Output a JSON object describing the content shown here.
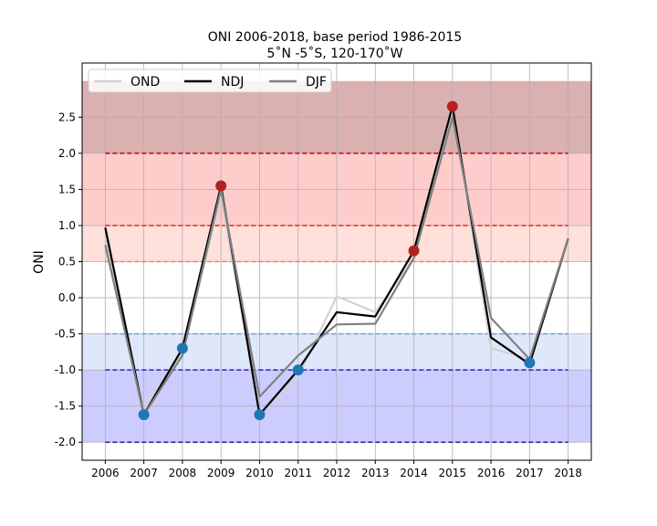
{
  "chart_data": {
    "type": "line",
    "title": "ONI 2006-2018, base period 1986-2015",
    "subtitle": "5˚N -5˚S, 120-170˚W",
    "xlabel": "",
    "ylabel": "ONI",
    "xlim": [
      2005.4,
      2018.6
    ],
    "ylim": [
      -2.25,
      3.25
    ],
    "grid": true,
    "legend_position": "top-left",
    "x": [
      2006,
      2007,
      2008,
      2009,
      2010,
      2011,
      2012,
      2013,
      2014,
      2015,
      2016,
      2017,
      2018
    ],
    "x_ticks": [
      "2006",
      "2007",
      "2008",
      "2009",
      "2010",
      "2011",
      "2012",
      "2013",
      "2014",
      "2015",
      "2016",
      "2017",
      "2018"
    ],
    "y_ticks": [
      "-2.0",
      "-1.5",
      "-1.0",
      "-0.5",
      "0.0",
      "0.5",
      "1.0",
      "1.5",
      "2.0",
      "2.5"
    ],
    "y_tick_values": [
      -2.0,
      -1.5,
      -1.0,
      -0.5,
      0.0,
      0.5,
      1.0,
      1.5,
      2.0,
      2.5
    ],
    "series": [
      {
        "name": "OND",
        "color": "#d3d3d3",
        "values": [
          0.85,
          -1.55,
          -0.75,
          1.4,
          -1.6,
          -1.1,
          0.02,
          -0.2,
          0.55,
          2.6,
          -0.7,
          -0.85,
          0.82
        ]
      },
      {
        "name": "NDJ",
        "color": "#000000",
        "values": [
          0.97,
          -1.62,
          -0.7,
          1.55,
          -1.62,
          -1.0,
          -0.2,
          -0.26,
          0.65,
          2.65,
          -0.55,
          -0.92,
          0.82
        ]
      },
      {
        "name": "DJF",
        "color": "#808080",
        "values": [
          0.73,
          -1.62,
          -0.8,
          1.5,
          -1.37,
          -0.8,
          -0.37,
          -0.36,
          0.55,
          2.5,
          -0.28,
          -0.85,
          0.82
        ]
      }
    ],
    "markers": [
      {
        "x": 2007,
        "y": -1.62,
        "color": "#1f77b4"
      },
      {
        "x": 2008,
        "y": -0.7,
        "color": "#1f77b4"
      },
      {
        "x": 2009,
        "y": 1.55,
        "color": "#b22222"
      },
      {
        "x": 2010,
        "y": -1.62,
        "color": "#1f77b4"
      },
      {
        "x": 2011,
        "y": -1.0,
        "color": "#1f77b4"
      },
      {
        "x": 2014,
        "y": 0.65,
        "color": "#b22222"
      },
      {
        "x": 2015,
        "y": 2.65,
        "color": "#b22222"
      },
      {
        "x": 2017,
        "y": -0.9,
        "color": "#1f77b4"
      }
    ],
    "bands": [
      {
        "y0": 2.0,
        "y1": 3.0,
        "color": "#dbb0b0"
      },
      {
        "y0": 1.0,
        "y1": 2.0,
        "color": "#ffcccc"
      },
      {
        "y0": 0.5,
        "y1": 1.0,
        "color": "#ffe0db"
      },
      {
        "y0": -1.0,
        "y1": -0.5,
        "color": "#dfe7fb"
      },
      {
        "y0": -2.0,
        "y1": -1.0,
        "color": "#ccccff"
      }
    ],
    "threshold_lines": [
      {
        "y": 2.0,
        "color": "#cc0000"
      },
      {
        "y": 1.0,
        "color": "#ee2222"
      },
      {
        "y": 0.5,
        "color": "#f08070"
      },
      {
        "y": -0.5,
        "color": "#7799dd"
      },
      {
        "y": -1.0,
        "color": "#2222cc"
      },
      {
        "y": -2.0,
        "color": "#222299"
      }
    ],
    "threshold_x_range": [
      2006,
      2018
    ]
  }
}
